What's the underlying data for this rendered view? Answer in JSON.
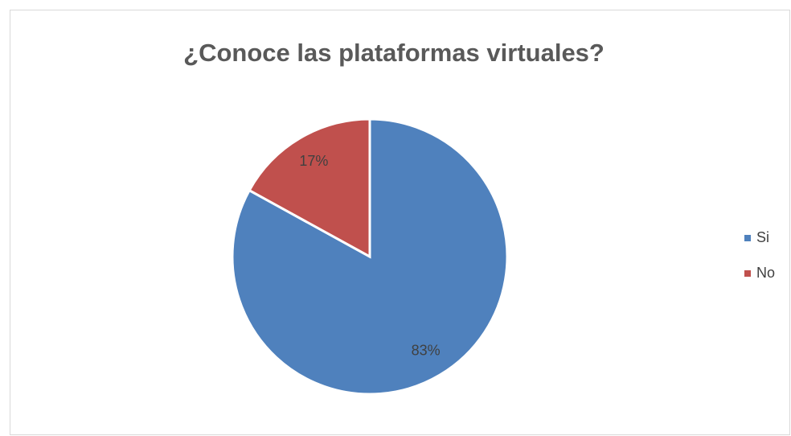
{
  "chart_data": {
    "type": "pie",
    "title": "¿Conoce las plataformas virtuales?",
    "categories": [
      "Si",
      "No"
    ],
    "values": [
      83,
      17
    ],
    "value_labels": [
      "83%",
      "17%"
    ],
    "colors": [
      "#4f81bd",
      "#c0504d"
    ],
    "legend": "right"
  }
}
